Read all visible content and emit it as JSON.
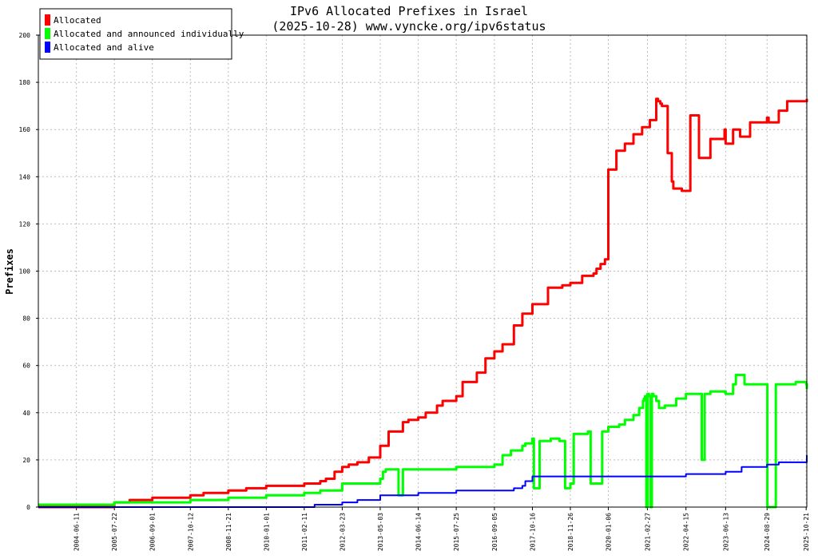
{
  "chart_data": {
    "type": "line",
    "title": "IPv6 Allocated Prefixes in Israel",
    "subtitle": "(2025-10-28) www.vyncke.org/ipv6status",
    "ylabel": "Prefixes",
    "xlabel": "",
    "ylim": [
      0,
      200
    ],
    "xlim": [
      "2003-05-01",
      "2025-10-28"
    ],
    "grid": true,
    "legend_position": "top-left",
    "y_ticks": [
      0,
      20,
      40,
      60,
      80,
      100,
      120,
      140,
      160,
      180,
      200
    ],
    "x_ticks": [
      "2004-06-11",
      "2005-07-22",
      "2006-09-01",
      "2007-10-12",
      "2008-11-21",
      "2010-01-01",
      "2011-02-11",
      "2012-03-23",
      "2013-05-03",
      "2014-06-14",
      "2015-07-25",
      "2016-09-05",
      "2017-10-16",
      "2018-11-26",
      "2020-01-06",
      "2021-02-27",
      "2022-04-15",
      "2023-06-13",
      "2024-08-29",
      "2025-10-21"
    ],
    "series": [
      {
        "name": "Allocated",
        "color": "#ff0000",
        "x": [
          "2003-05-01",
          "2005-07-22",
          "2006-01-01",
          "2006-09-01",
          "2007-06-01",
          "2007-10-12",
          "2008-03-01",
          "2008-11-21",
          "2009-06-01",
          "2010-01-01",
          "2010-09-01",
          "2011-02-11",
          "2011-08-01",
          "2011-10-01",
          "2012-01-01",
          "2012-03-23",
          "2012-06-01",
          "2012-09-01",
          "2013-01-01",
          "2013-05-03",
          "2013-08-01",
          "2014-01-01",
          "2014-03-01",
          "2014-06-14",
          "2014-09-01",
          "2015-01-01",
          "2015-03-01",
          "2015-07-25",
          "2015-10-01",
          "2016-03-01",
          "2016-06-01",
          "2016-09-05",
          "2016-12-01",
          "2017-04-01",
          "2017-07-01",
          "2017-10-16",
          "2018-04-01",
          "2018-09-01",
          "2018-11-26",
          "2019-04-01",
          "2019-08-01",
          "2019-09-01",
          "2019-10-15",
          "2019-12-01",
          "2020-01-06",
          "2020-04-01",
          "2020-07-01",
          "2020-10-01",
          "2021-01-01",
          "2021-03-25",
          "2021-06-01",
          "2021-06-20",
          "2021-07-15",
          "2021-08-01",
          "2021-10-01",
          "2021-11-15",
          "2021-12-01",
          "2022-03-01",
          "2022-06-01",
          "2022-09-01",
          "2023-01-01",
          "2023-06-01",
          "2023-06-13",
          "2023-09-01",
          "2023-11-15",
          "2024-03-01",
          "2024-08-29",
          "2024-09-15",
          "2025-01-01",
          "2025-04-01",
          "2025-10-21",
          "2025-10-28"
        ],
        "values": [
          0,
          2,
          3,
          4,
          4,
          5,
          6,
          7,
          8,
          9,
          9,
          10,
          11,
          12,
          15,
          17,
          18,
          19,
          21,
          26,
          32,
          36,
          37,
          38,
          40,
          43,
          45,
          47,
          53,
          57,
          63,
          66,
          69,
          77,
          82,
          86,
          93,
          94,
          95,
          98,
          99,
          101,
          103,
          105,
          143,
          151,
          154,
          158,
          161,
          164,
          173,
          172,
          171,
          170,
          150,
          138,
          135,
          134,
          166,
          148,
          156,
          160,
          154,
          160,
          157,
          163,
          165,
          163,
          168,
          172,
          172,
          173
        ]
      },
      {
        "name": "Allocated and announced individually",
        "color": "#00ff00",
        "x": [
          "2003-05-01",
          "2004-09-01",
          "2005-07-22",
          "2006-09-01",
          "2007-10-12",
          "2008-11-21",
          "2010-01-01",
          "2011-02-11",
          "2011-08-01",
          "2012-03-23",
          "2013-05-03",
          "2013-06-01",
          "2013-07-01",
          "2013-11-01",
          "2013-11-15",
          "2014-01-01",
          "2014-06-14",
          "2015-07-25",
          "2016-09-05",
          "2016-12-01",
          "2017-03-01",
          "2017-07-01",
          "2017-08-01",
          "2017-10-16",
          "2017-11-01",
          "2018-01-01",
          "2018-05-01",
          "2018-08-01",
          "2018-10-01",
          "2018-11-26",
          "2019-01-01",
          "2019-06-01",
          "2019-07-01",
          "2019-11-01",
          "2020-01-06",
          "2020-05-01",
          "2020-07-01",
          "2020-10-01",
          "2020-12-01",
          "2021-01-10",
          "2021-01-20",
          "2021-02-01",
          "2021-02-15",
          "2021-02-27",
          "2021-03-15",
          "2021-04-01",
          "2021-04-15",
          "2021-05-01",
          "2021-06-01",
          "2021-07-01",
          "2021-08-01",
          "2021-09-01",
          "2022-01-01",
          "2022-04-15",
          "2022-08-01",
          "2022-09-01",
          "2022-10-01",
          "2022-11-01",
          "2023-01-01",
          "2023-06-13",
          "2023-09-01",
          "2023-10-01",
          "2024-01-01",
          "2024-06-01",
          "2024-08-15",
          "2024-08-20",
          "2024-09-01",
          "2024-12-01",
          "2025-04-01",
          "2025-07-01",
          "2025-10-21",
          "2025-10-28"
        ],
        "values": [
          1,
          1,
          2,
          2,
          3,
          4,
          5,
          6,
          7,
          10,
          12,
          15,
          16,
          16,
          5,
          16,
          16,
          17,
          18,
          22,
          24,
          26,
          27,
          29,
          8,
          28,
          29,
          28,
          8,
          10,
          31,
          32,
          10,
          32,
          34,
          35,
          37,
          39,
          42,
          45,
          46,
          47,
          0,
          48,
          47,
          0,
          48,
          47,
          45,
          42,
          42,
          43,
          46,
          48,
          48,
          48,
          20,
          48,
          49,
          48,
          52,
          56,
          52,
          52,
          52,
          52,
          0,
          52,
          52,
          53,
          52,
          50
        ]
      },
      {
        "name": "Allocated and alive",
        "color": "#0000ff",
        "x": [
          "2003-05-01",
          "2011-02-11",
          "2011-06-01",
          "2012-03-23",
          "2012-09-01",
          "2013-05-03",
          "2014-06-14",
          "2015-07-25",
          "2016-09-05",
          "2017-04-01",
          "2017-07-01",
          "2017-08-01",
          "2017-10-16",
          "2018-11-26",
          "2020-01-06",
          "2021-02-27",
          "2022-04-15",
          "2023-06-13",
          "2023-12-01",
          "2024-08-29",
          "2025-01-01",
          "2025-10-21",
          "2025-10-28"
        ],
        "values": [
          0,
          0,
          1,
          2,
          3,
          5,
          6,
          7,
          7,
          8,
          9,
          11,
          13,
          13,
          13,
          13,
          14,
          15,
          17,
          18,
          19,
          19,
          22
        ]
      }
    ]
  }
}
